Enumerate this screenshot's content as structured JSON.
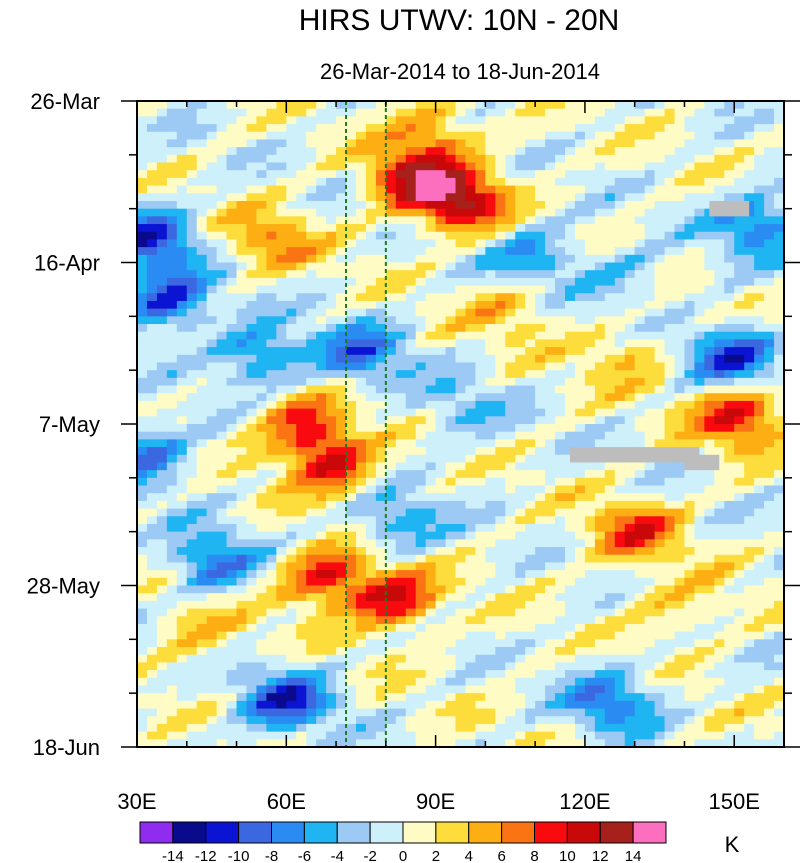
{
  "chart_data": {
    "type": "heatmap",
    "title": "HIRS UTWV: 10N - 20N",
    "subtitle": "26-Mar-2014 to 18-Jun-2014",
    "xlabel": "",
    "ylabel": "",
    "x_range": [
      30,
      160
    ],
    "x_ticks": [
      {
        "value": 30,
        "label": "30E"
      },
      {
        "value": 60,
        "label": "60E"
      },
      {
        "value": 90,
        "label": "90E"
      },
      {
        "value": 120,
        "label": "120E"
      },
      {
        "value": 150,
        "label": "150E"
      }
    ],
    "y_range_days": [
      0,
      84
    ],
    "y_ticks": [
      {
        "value": 0,
        "label": "26-Mar"
      },
      {
        "value": 21,
        "label": "16-Apr"
      },
      {
        "value": 42,
        "label": "7-May"
      },
      {
        "value": 63,
        "label": "28-May"
      },
      {
        "value": 84,
        "label": "18-Jun"
      }
    ],
    "reference_lines_lon": [
      72,
      80
    ],
    "colorbar": {
      "unit": "K",
      "levels": [
        -14,
        -12,
        -10,
        -8,
        -6,
        -4,
        -2,
        0,
        2,
        4,
        6,
        8,
        10,
        12,
        14
      ],
      "colors": [
        "#8f2cf0",
        "#0a0a8c",
        "#0b14d2",
        "#3b68e0",
        "#2a8cf2",
        "#1fb4f2",
        "#9ccaf4",
        "#cdf0fb",
        "#fffbc4",
        "#fcdd3c",
        "#fcae13",
        "#fb7414",
        "#f80a0e",
        "#c80809",
        "#a6201c",
        "#fc6fbf"
      ]
    },
    "anomaly_features": [
      {
        "lon": 95,
        "day": 13,
        "value": 12
      },
      {
        "lon": 85,
        "day": 10,
        "value": 10
      },
      {
        "lon": 90,
        "day": 4,
        "value": 6
      },
      {
        "lon": 57,
        "day": 18,
        "value": 6
      },
      {
        "lon": 69,
        "day": 47,
        "value": 10
      },
      {
        "lon": 63,
        "day": 42,
        "value": 8
      },
      {
        "lon": 68,
        "day": 62,
        "value": 10
      },
      {
        "lon": 82,
        "day": 65,
        "value": 10
      },
      {
        "lon": 151,
        "day": 41,
        "value": 10
      },
      {
        "lon": 130,
        "day": 56,
        "value": 8
      },
      {
        "lon": 42,
        "day": 69,
        "value": 4
      },
      {
        "lon": 105,
        "day": 27,
        "value": 4
      },
      {
        "lon": 128,
        "day": 33,
        "value": 4
      },
      {
        "lon": 140,
        "day": 66,
        "value": 4
      },
      {
        "lon": 36,
        "day": 26,
        "value": -10
      },
      {
        "lon": 33,
        "day": 18,
        "value": -10
      },
      {
        "lon": 55,
        "day": 33,
        "value": -8
      },
      {
        "lon": 75,
        "day": 33,
        "value": -8
      },
      {
        "lon": 150,
        "day": 33,
        "value": -10
      },
      {
        "lon": 155,
        "day": 16,
        "value": -8
      },
      {
        "lon": 45,
        "day": 60,
        "value": -8
      },
      {
        "lon": 60,
        "day": 78,
        "value": -10
      },
      {
        "lon": 125,
        "day": 78,
        "value": -8
      },
      {
        "lon": 110,
        "day": 20,
        "value": -6
      },
      {
        "lon": 95,
        "day": 40,
        "value": -4
      },
      {
        "lon": 32,
        "day": 46,
        "value": -8
      },
      {
        "lon": 82,
        "day": 55,
        "value": -6
      },
      {
        "lon": 128,
        "day": 23,
        "value": -4
      }
    ],
    "missing_data": [
      {
        "lon": [
          145,
          153
        ],
        "day": [
          13,
          15
        ]
      },
      {
        "lon": [
          117,
          143
        ],
        "day": [
          45,
          47
        ]
      },
      {
        "lon": [
          140,
          147
        ],
        "day": [
          46,
          48
        ]
      }
    ]
  }
}
